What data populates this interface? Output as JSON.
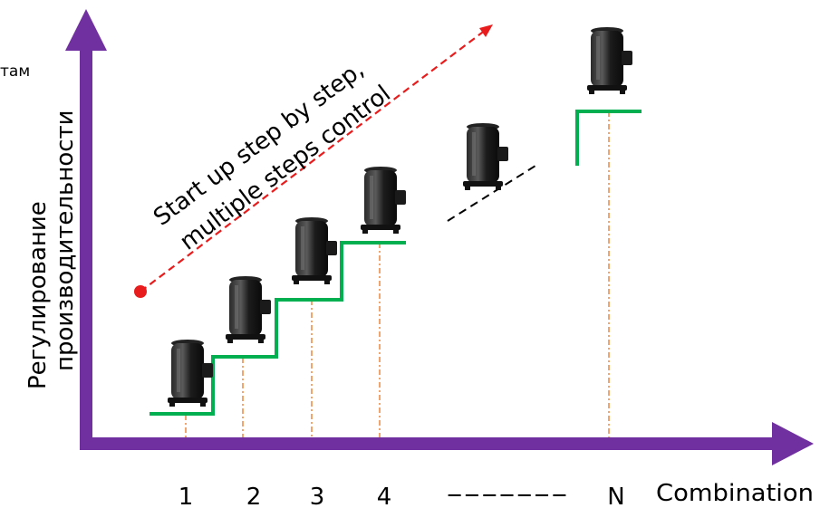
{
  "diagram": {
    "y_axis_label_line1": "Регулирование",
    "y_axis_label_line2": "производительности",
    "top_left_fragment": "там",
    "x_axis_label": "Combination",
    "diagonal_label_line1": "Start up step by step,",
    "diagonal_label_line2": "multiple steps control",
    "step_numbers": [
      "1",
      "2",
      "3",
      "4"
    ],
    "ellipsis_dashes": "-------",
    "last_step_label": "N",
    "colors": {
      "axis": "#7030A0",
      "steps": "#00B050",
      "guide_lines": "#ED7D31",
      "trend_arrow": "#E81C1C",
      "compressor": "#151515"
    },
    "icons": [
      "compressor-icon"
    ]
  }
}
